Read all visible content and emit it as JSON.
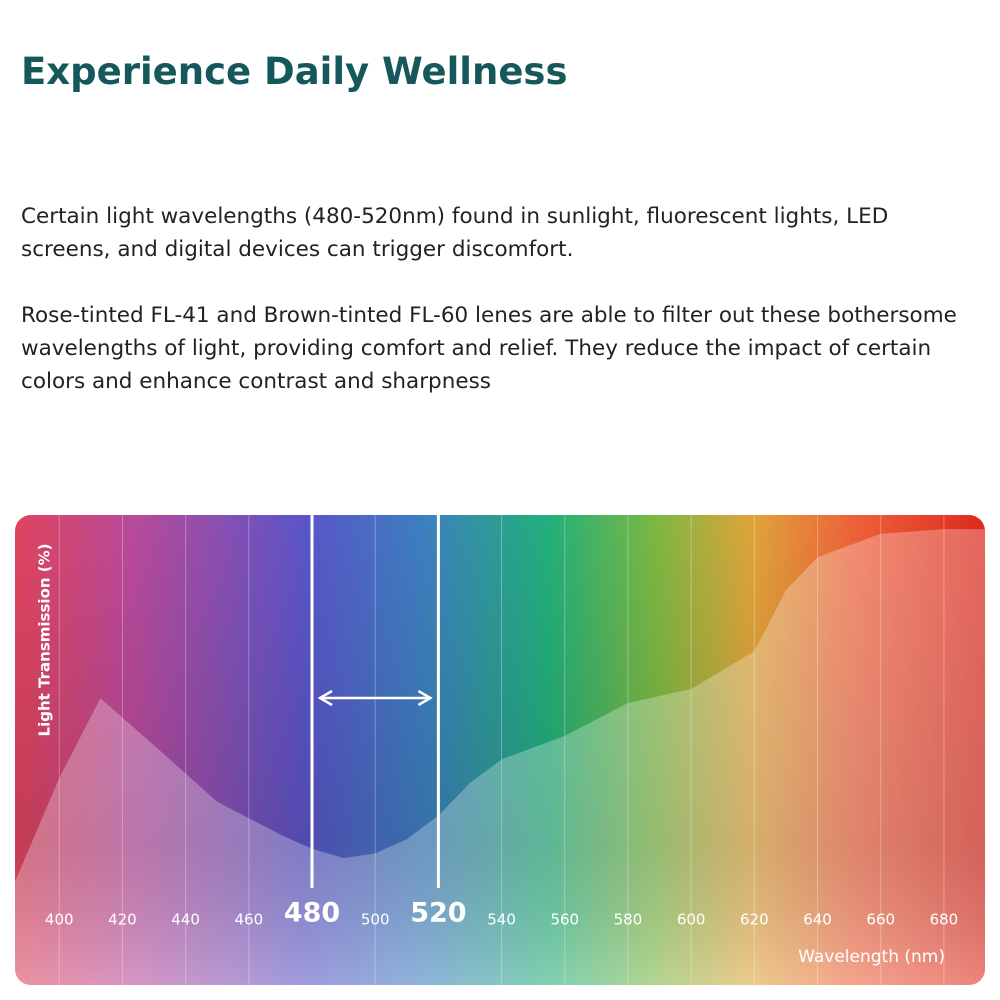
{
  "header": {
    "title": "Experience Daily Wellness"
  },
  "paragraphs": [
    "Certain light wavelengths (480-520nm) found in sunlight, fluorescent lights, LED screens, and digital devices can trigger discomfort.",
    "Rose-tinted FL-41 and Brown-tinted FL-60 lenes are able to filter out these bothersome wavelengths of light, providing comfort and relief. They reduce the impact of certain colors and enhance contrast and sharpness"
  ],
  "chart_data": {
    "type": "area",
    "y_label": "Light Transmission (%)",
    "x_label": "Wavelength (nm)",
    "x": [
      386,
      400,
      413,
      430,
      450,
      470,
      480,
      490,
      500,
      510,
      520,
      530,
      540,
      560,
      580,
      600,
      620,
      630,
      640,
      660,
      680,
      693
    ],
    "values": [
      22,
      44,
      61,
      51,
      39,
      32,
      29,
      27,
      28,
      31,
      36,
      43,
      48,
      53,
      60,
      63,
      71,
      84,
      91,
      96,
      97,
      97
    ],
    "xlim": [
      386,
      693
    ],
    "ylim": [
      0,
      100
    ],
    "xticks": [
      400,
      420,
      440,
      460,
      480,
      500,
      520,
      540,
      560,
      580,
      600,
      620,
      640,
      660,
      680
    ],
    "band": [
      480,
      520
    ],
    "grid": true,
    "color": "#ffffff"
  }
}
